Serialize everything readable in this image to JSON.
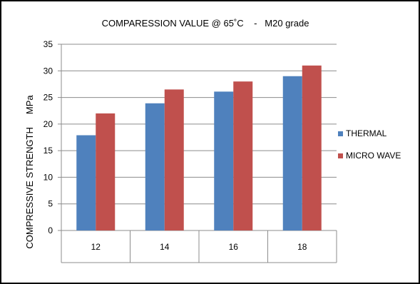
{
  "chart_data": {
    "type": "bar",
    "title": "COMPARESSION VALUE @ 65˚C    -   M20 grade",
    "xlabel": "",
    "ylabel": "COMPRESSIVE STRENGTH     MPa",
    "categories": [
      "12",
      "14",
      "16",
      "18"
    ],
    "ylim": [
      0,
      35
    ],
    "yticks": [
      "0",
      "5",
      "10",
      "15",
      "20",
      "25",
      "30",
      "35"
    ],
    "grid": true,
    "legend_position": "right",
    "series": [
      {
        "name": "THERMAL",
        "color": "#4F81BD",
        "values": [
          17.9,
          23.9,
          26.1,
          29.0
        ]
      },
      {
        "name": "MICRO WAVE",
        "color": "#C0504D",
        "values": [
          22.0,
          26.5,
          28.0,
          31.0
        ]
      }
    ]
  }
}
